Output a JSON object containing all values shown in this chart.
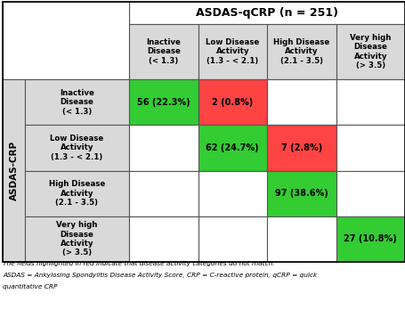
{
  "title": "ASDAS-qCRP (n = 251)",
  "col_headers": [
    "Inactive\nDisease\n(< 1.3)",
    "Low Disease\nActivity\n(1.3 - < 2.1)",
    "High Disease\nActivity\n(2.1 - 3.5)",
    "Very high\nDisease\nActivity\n(> 3.5)"
  ],
  "row_headers": [
    "Inactive\nDisease\n(< 1.3)",
    "Low Disease\nActivity\n(1.3 - < 2.1)",
    "High Disease\nActivity\n(2.1 - 3.5)",
    "Very high\nDisease\nActivity\n(> 3.5)"
  ],
  "y_label": "ASDAS-CRP",
  "cell_data": [
    [
      "56 (22.3%)",
      "2 (0.8%)",
      "",
      ""
    ],
    [
      "",
      "62 (24.7%)",
      "7 (2.8%)",
      ""
    ],
    [
      "",
      "",
      "97 (38.6%)",
      ""
    ],
    [
      "",
      "",
      "",
      "27 (10.8%)"
    ]
  ],
  "cell_colors": [
    [
      "#33cc33",
      "#ff4444",
      "#ffffff",
      "#ffffff"
    ],
    [
      "#ffffff",
      "#33cc33",
      "#ff4444",
      "#ffffff"
    ],
    [
      "#ffffff",
      "#ffffff",
      "#33cc33",
      "#ffffff"
    ],
    [
      "#ffffff",
      "#ffffff",
      "#ffffff",
      "#33cc33"
    ]
  ],
  "footnote1": "The fields highlighted in red indicate that disease activity categories do not match.",
  "footnote2": "ASDAS = Ankylosing Spondylitis Disease Activity Score, CRP = C-reactive protein, qCRP = quick",
  "footnote3": "quantitative CRP",
  "header_bg": "#d9d9d9",
  "row_label_bg": "#d9d9d9",
  "title_bg": "#ffffff",
  "empty_cell_bg": "#ffffff",
  "border_color": "#555555",
  "lw": 0.8
}
